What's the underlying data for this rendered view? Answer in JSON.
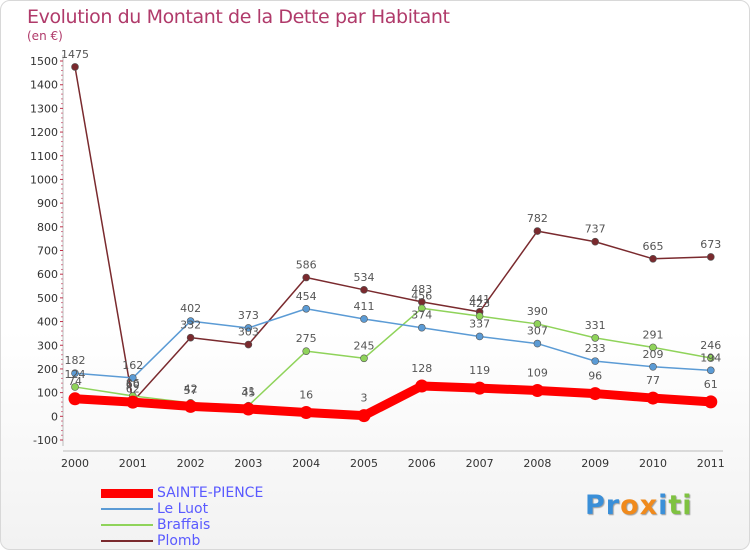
{
  "chart_data": {
    "type": "line",
    "title": "Evolution du Montant de la Dette par Habitant",
    "unit_label": "(en €)",
    "x": [
      "2000",
      "2001",
      "2002",
      "2003",
      "2004",
      "2005",
      "2006",
      "2007",
      "2008",
      "2009",
      "2010",
      "2011"
    ],
    "ylim": [
      -100,
      1500
    ],
    "yticks": [
      -100,
      0,
      100,
      200,
      300,
      400,
      500,
      600,
      700,
      800,
      900,
      1000,
      1100,
      1200,
      1300,
      1400,
      1500
    ],
    "grid": false,
    "legend_position": "bottom-left",
    "series": [
      {
        "name": "SAINTE-PIENCE",
        "color": "#ff0000",
        "values": [
          74,
          60,
          42,
          31,
          16,
          3,
          128,
          119,
          109,
          96,
          77,
          61
        ]
      },
      {
        "name": "Le Luot",
        "color": "#5b9bd5",
        "values": [
          182,
          162,
          402,
          373,
          454,
          411,
          374,
          337,
          307,
          233,
          209,
          194
        ]
      },
      {
        "name": "Braffais",
        "color": "#8fd35a",
        "values": [
          124,
          86,
          57,
          45,
          275,
          245,
          456,
          423,
          390,
          331,
          291,
          246
        ]
      },
      {
        "name": "Plomb",
        "color": "#7a2a2e",
        "values": [
          1475,
          62,
          332,
          303,
          586,
          534,
          483,
          441,
          782,
          737,
          665,
          673
        ]
      }
    ]
  },
  "legend_colors": {
    "text": "#5a5aff"
  },
  "logo": {
    "letters": [
      "P",
      "r",
      "o",
      "x",
      "i",
      "t",
      "i"
    ],
    "colors": [
      "#3a8fd8",
      "#3a8fd8",
      "#f08a1c",
      "#f08a1c",
      "#3a8fd8",
      "#7fc241",
      "#7fc241"
    ]
  }
}
